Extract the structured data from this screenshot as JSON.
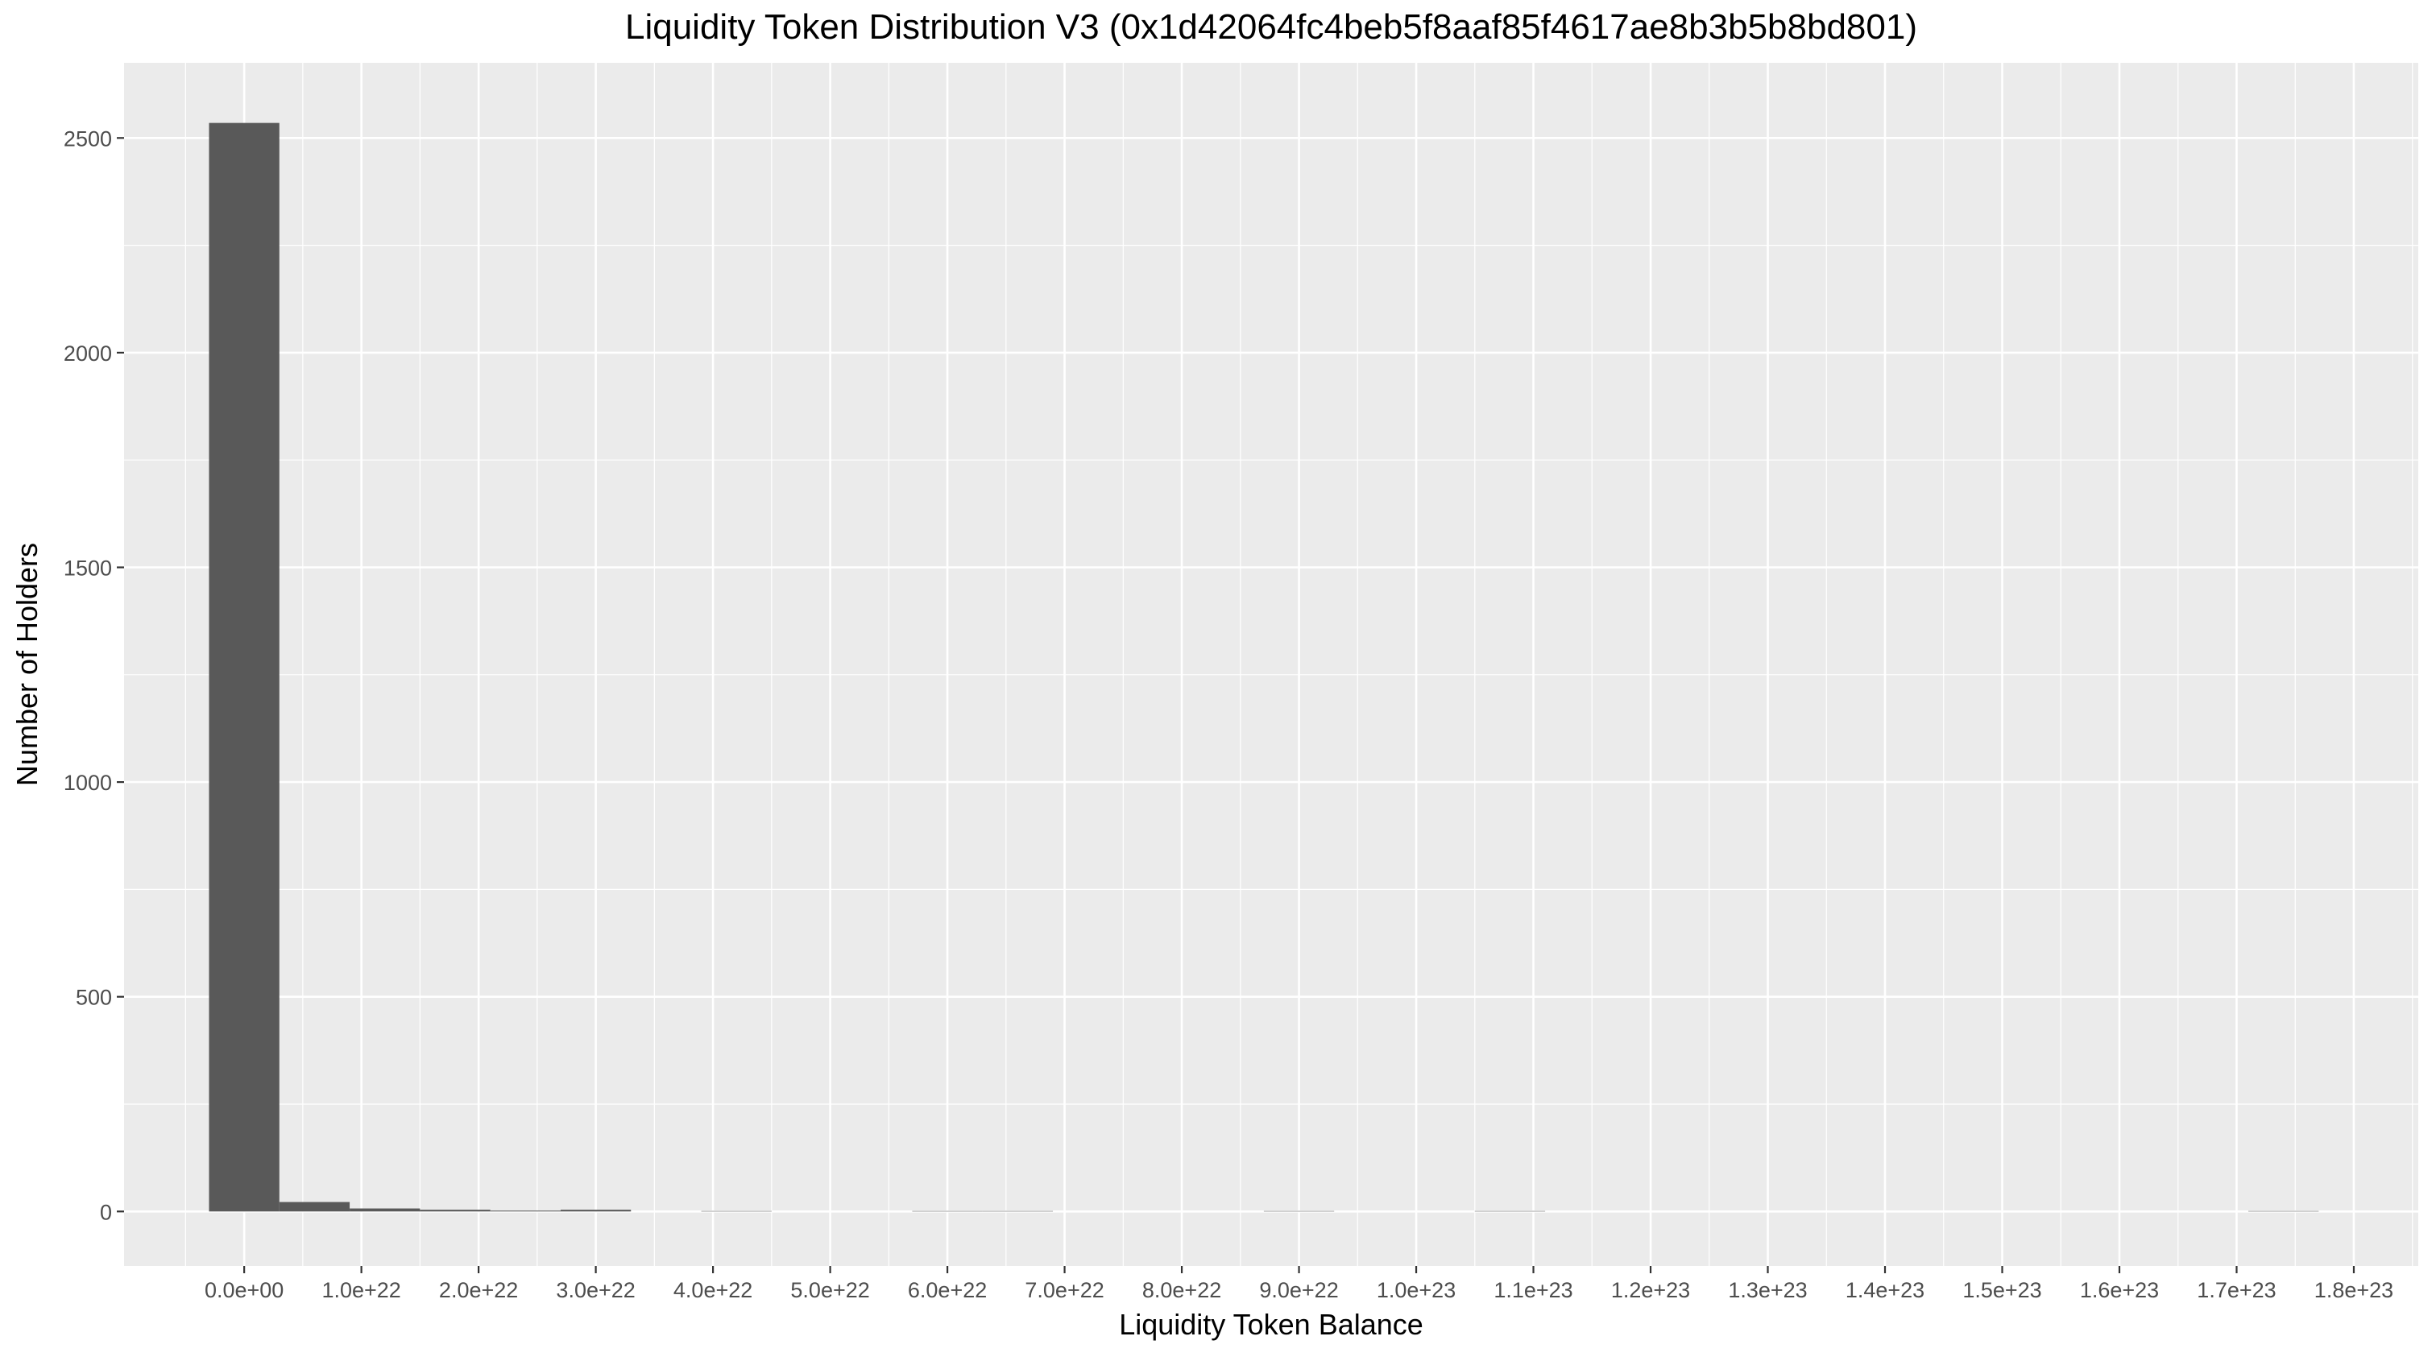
{
  "chart_data": {
    "type": "bar",
    "title": "Liquidity Token Distribution V3 (0x1d42064fc4beb5f8aaf85f4617ae8b3b5b8bd801)",
    "xlabel": "Liquidity Token Balance",
    "ylabel": "Number of Holders",
    "xlim": [
      -1.025e+22,
      1.855e+23
    ],
    "ylim": [
      -127,
      2675
    ],
    "bin_width": 6e+21,
    "x_ticks": [
      0,
      1e+22,
      2e+22,
      3e+22,
      4e+22,
      5e+22,
      6e+22,
      7e+22,
      8e+22,
      9e+22,
      1e+23,
      1.1e+23,
      1.2e+23,
      1.3e+23,
      1.4e+23,
      1.5e+23,
      1.6e+23,
      1.7e+23,
      1.8e+23
    ],
    "x_tick_labels": [
      "0.0e+00",
      "1.0e+22",
      "2.0e+22",
      "3.0e+22",
      "4.0e+22",
      "5.0e+22",
      "6.0e+22",
      "7.0e+22",
      "8.0e+22",
      "9.0e+22",
      "1.0e+23",
      "1.1e+23",
      "1.2e+23",
      "1.3e+23",
      "1.4e+23",
      "1.5e+23",
      "1.6e+23",
      "1.7e+23",
      "1.8e+23"
    ],
    "y_ticks": [
      0,
      500,
      1000,
      1500,
      2000,
      2500
    ],
    "y_tick_labels": [
      "0",
      "500",
      "1000",
      "1500",
      "2000",
      "2500"
    ],
    "bins": [
      {
        "x_center": 0,
        "count": 2535
      },
      {
        "x_center": 6e+21,
        "count": 22
      },
      {
        "x_center": 1.2e+22,
        "count": 7
      },
      {
        "x_center": 1.8e+22,
        "count": 4
      },
      {
        "x_center": 2.4e+22,
        "count": 2
      },
      {
        "x_center": 3e+22,
        "count": 4
      },
      {
        "x_center": 4.2e+22,
        "count": 1
      },
      {
        "x_center": 6e+22,
        "count": 1
      },
      {
        "x_center": 6.6e+22,
        "count": 1
      },
      {
        "x_center": 9e+22,
        "count": 1
      },
      {
        "x_center": 1.08e+23,
        "count": 1
      },
      {
        "x_center": 1.74e+23,
        "count": 1
      }
    ],
    "grid": true,
    "colors": {
      "panel_background": "#EBEBEB",
      "bar_fill": "#595959",
      "grid": "#FFFFFF"
    }
  }
}
